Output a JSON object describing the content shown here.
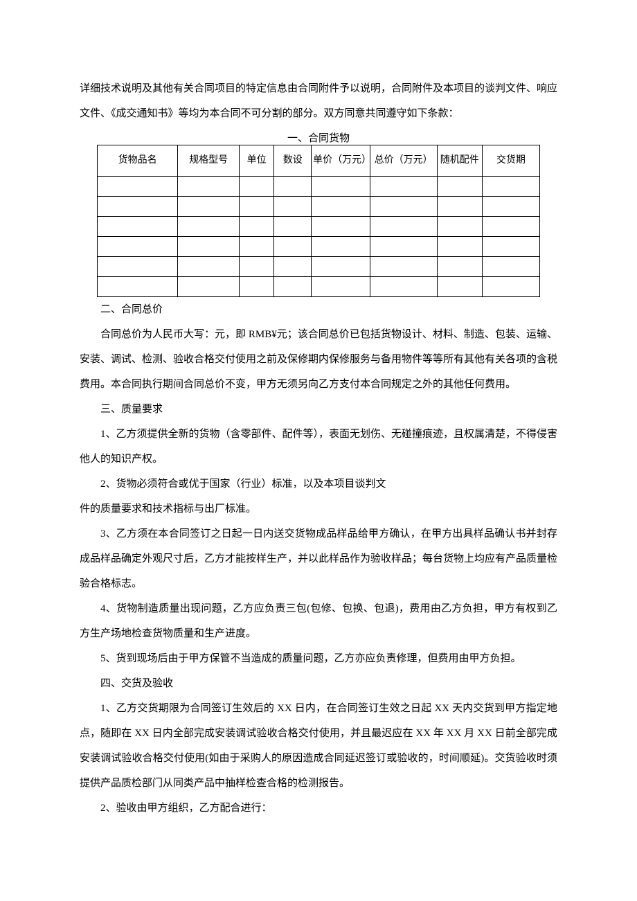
{
  "intro": "详细技术说明及其他有关合同项目的特定信息由合同附件予以说明，合同附件及本项目的谈判文件、响应文件、《成交通知书》等均为本合同不可分割的部分。双方同意共同遵守如下条款：",
  "table": {
    "title": "一、合同货物",
    "headers": {
      "name": "货物品名",
      "spec": "规格型号",
      "unit": "单位",
      "qty": "数设",
      "unit_price": "单价（万元）",
      "total_price": "总价（万元）",
      "accessory": "随机配件",
      "delivery": "交货期"
    },
    "rows": [
      [
        "",
        "",
        "",
        "",
        "",
        "",
        "",
        ""
      ],
      [
        "",
        "",
        "",
        "",
        "",
        "",
        "",
        ""
      ],
      [
        "",
        "",
        "",
        "",
        "",
        "",
        "",
        ""
      ],
      [
        "",
        "",
        "",
        "",
        "",
        "",
        "",
        ""
      ],
      [
        "",
        "",
        "",
        "",
        "",
        "",
        "",
        ""
      ],
      [
        "",
        "",
        "",
        "",
        "",
        "",
        "",
        ""
      ]
    ]
  },
  "sections": {
    "s2_title": "二、合同总价",
    "s2_p1": "合同总价为人民币大写：元，即 RMB¥元；该合同总价已包括货物设计、材料、制造、包装、运输、安装、调试、检测、验收合格交付使用之前及保修期内保修服务与备用物件等等所有其他有关各项的含税费用。本合同执行期间合同总价不变，甲方无须另向乙方支付本合同规定之外的其他任何费用。",
    "s3_title": "三、质量要求",
    "s3_p1": "1、乙方须提供全新的货物（含零部件、配件等），表面无划伤、无碰撞痕迹，且权属清楚，不得侵害他人的知识产权。",
    "s3_p2a": "2、货物必须符合或优于国家（行业）标准，以及本项目谈判文",
    "s3_p2b": "件的质量要求和技术指标与出厂标准。",
    "s3_p3": "3、乙方须在本合同签订之日起一日内送交货物成品样品给甲方确认，在甲方出具样品确认书并封存成品样品确定外观尺寸后，乙方才能按样生产，并以此样品作为验收样品；每台货物上均应有产品质量检验合格标志。",
    "s3_p4": "4、货物制造质量出现问题，乙方应负责三包(包修、包换、包退)，费用由乙方负担，甲方有权到乙方生产场地检查货物质量和生产进度。",
    "s3_p5": "5、货到现场后由于甲方保管不当造成的质量问题，乙方亦应负责修理，但费用由甲方负担。",
    "s4_title": "四、交货及验收",
    "s4_p1": "1、乙方交货期限为合同签订生效后的 XX 日内，在合同签订生效之日起 XX 天内交货到甲方指定地点，随即在 XX 日内全部完成安装调试验收合格交付使用，并且最迟应在 XX 年 XX 月 XX 日前全部完成安装调试验收合格交付使用(如由于采购人的原因造成合同延迟签订或验收的，时间顺延)。交货验收时须提供产品质检部门从同类产品中抽样检查合格的检测报告。",
    "s4_p2": "2、验收由甲方组织，乙方配合进行："
  }
}
